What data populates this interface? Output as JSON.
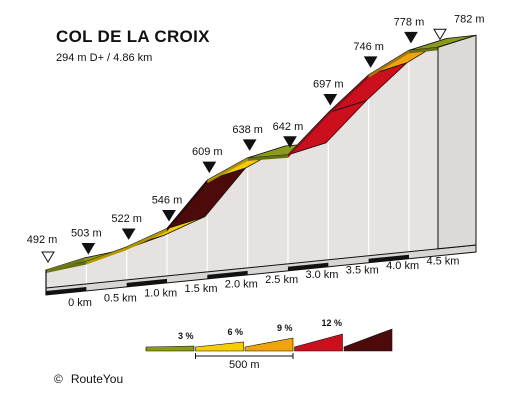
{
  "header": {
    "title": "COL DE LA CROIX",
    "subtitle": "294 m D+ / 4.86 km"
  },
  "footer": {
    "copyright_symbol": "©",
    "credit": "RouteYou"
  },
  "chart_data": {
    "type": "area",
    "title": "COL DE LA CROIX",
    "subtitle": "294 m D+ / 4.86 km",
    "distance_unit": "km",
    "elevation_unit": "m",
    "points": [
      {
        "km": 0.0,
        "elev": 492,
        "label": "492 m",
        "marker": "start"
      },
      {
        "km": 0.5,
        "elev": 503,
        "label": "503 m",
        "marker": "point"
      },
      {
        "km": 1.0,
        "elev": 522,
        "label": "522 m",
        "marker": "point"
      },
      {
        "km": 1.5,
        "elev": 546,
        "label": "546 m",
        "marker": "point"
      },
      {
        "km": 2.0,
        "elev": 609,
        "label": "609 m",
        "marker": "point"
      },
      {
        "km": 2.5,
        "elev": 638,
        "label": "638 m",
        "marker": "point"
      },
      {
        "km": 3.0,
        "elev": 642,
        "label": "642 m",
        "marker": "point"
      },
      {
        "km": 3.5,
        "elev": 697,
        "label": "697 m",
        "marker": "point"
      },
      {
        "km": 4.0,
        "elev": 746,
        "label": "746 m",
        "marker": "point"
      },
      {
        "km": 4.5,
        "elev": 778,
        "label": "778 m",
        "marker": "point"
      },
      {
        "km": 4.86,
        "elev": 782,
        "label": "782 m",
        "marker": "end"
      }
    ],
    "segment_colors": [
      "#8c9a1c",
      "#f7cc00",
      "#f7cc00",
      "#4d0a0a",
      "#f7cc00",
      "#8c9a1c",
      "#cc0f1d",
      "#cc0f1d",
      "#f0a30c",
      "#8c9a1c"
    ],
    "tick_labels": [
      "0 km",
      "0.5 km",
      "1.0 km",
      "1.5 km",
      "2.0 km",
      "2.5 km",
      "3.0 km",
      "3.5 km",
      "4.0 km",
      "4.5 km"
    ],
    "legend": {
      "items": [
        {
          "label": "",
          "color": "#8c9a1c"
        },
        {
          "label": "3 %",
          "color": "#f7cc00"
        },
        {
          "label": "6 %",
          "color": "#f0a30c"
        },
        {
          "label": "9 %",
          "color": "#cc0f1d"
        },
        {
          "label": "12 %",
          "color": "#4d0a0a"
        }
      ],
      "scale_label": "500 m"
    }
  }
}
